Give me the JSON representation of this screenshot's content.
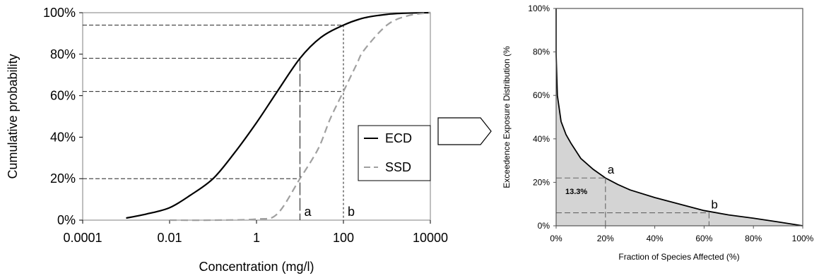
{
  "chart_data": [
    {
      "type": "line",
      "xlabel": "Concentration (mg/l)",
      "ylabel": "Cumulative probability",
      "x_scale": "log",
      "xlim": [
        0.0001,
        10000
      ],
      "ylim": [
        0,
        100
      ],
      "x_ticks": [
        "0.0001",
        "0.01",
        "1",
        "100",
        "10000"
      ],
      "y_ticks": [
        "0%",
        "20%",
        "40%",
        "60%",
        "80%",
        "100%"
      ],
      "grid": false,
      "legend": {
        "placement": "right",
        "entries": [
          "ECD",
          "SSD"
        ]
      },
      "series": [
        {
          "name": "ECD",
          "style": "solid",
          "color": "#000000",
          "x": [
            0.001,
            0.003,
            0.01,
            0.03,
            0.1,
            0.3,
            1,
            3,
            10,
            30,
            100,
            300,
            1000,
            3000,
            10000
          ],
          "y": [
            1,
            3,
            6,
            12,
            20,
            32,
            47,
            62,
            78,
            88,
            94,
            97.5,
            99.2,
            99.8,
            100
          ]
        },
        {
          "name": "SSD",
          "style": "dashed",
          "color": "#a0a0a0",
          "x": [
            0.01,
            0.1,
            1,
            3,
            10,
            20,
            30,
            50,
            100,
            200,
            300,
            1000,
            3000,
            10000
          ],
          "y": [
            0,
            0,
            0.5,
            3,
            20,
            30,
            37,
            49,
            62,
            75,
            82,
            94,
            98.5,
            100
          ]
        }
      ],
      "reference_lines": [
        {
          "label": "a",
          "x": 10,
          "y_ECD": 78,
          "y_SSD": 20
        },
        {
          "label": "b",
          "x": 100,
          "y_ECD": 94,
          "y_SSD": 62
        }
      ]
    },
    {
      "type": "area",
      "xlabel": "Fraction of Species Affected (%)",
      "ylabel": "Exceedence Exposure Distribution (%",
      "xlim": [
        0,
        100
      ],
      "ylim": [
        0,
        100
      ],
      "x_ticks": [
        "0%",
        "20%",
        "40%",
        "60%",
        "80%",
        "100%"
      ],
      "y_ticks": [
        "0%",
        "20%",
        "40%",
        "60%",
        "80%",
        "100%"
      ],
      "grid": false,
      "fill_color": "#d4d4d4",
      "x": [
        0,
        0.5,
        2,
        4,
        6,
        10,
        15,
        20,
        25,
        30,
        40,
        50,
        60,
        70,
        80,
        90,
        100
      ],
      "y": [
        79,
        60,
        48,
        42,
        38,
        31,
        26,
        22,
        19,
        16.5,
        13,
        10,
        7,
        5,
        3.5,
        1.8,
        0
      ],
      "area_label": "13.3%",
      "points": [
        {
          "label": "a",
          "x": 20,
          "y": 22
        },
        {
          "label": "b",
          "x": 62,
          "y": 6
        }
      ]
    }
  ]
}
